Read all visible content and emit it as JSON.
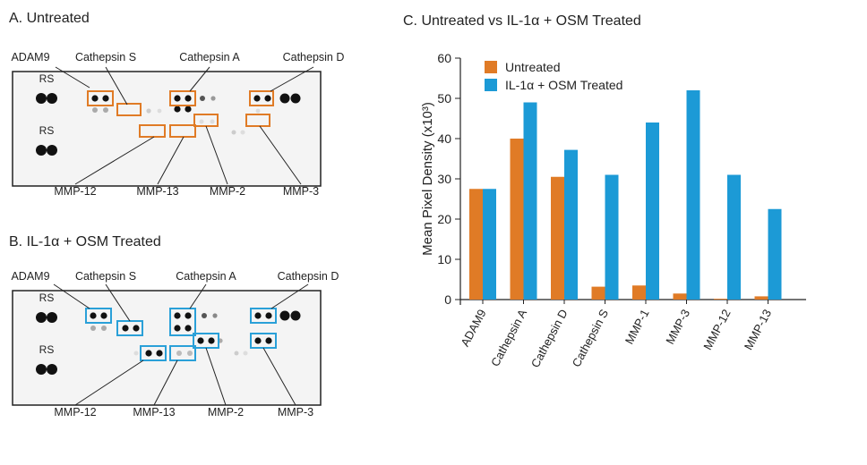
{
  "panel_a": {
    "title": "A. Untreated",
    "label_rs": "RS",
    "top_labels": [
      "ADAM9",
      "Cathepsin S",
      "Cathepsin A",
      "Cathepsin D"
    ],
    "bottom_labels": [
      "MMP-12",
      "MMP-13",
      "MMP-2",
      "MMP-3"
    ],
    "box_color": "#e07b26"
  },
  "panel_b": {
    "title": "B. IL-1α + OSM Treated",
    "label_rs": "RS",
    "top_labels": [
      "ADAM9",
      "Cathepsin S",
      "Cathepsin A",
      "Cathepsin D"
    ],
    "bottom_labels": [
      "MMP-12",
      "MMP-13",
      "MMP-2",
      "MMP-3"
    ],
    "box_color": "#2aa0d8"
  },
  "chart_data": {
    "type": "bar",
    "title": "C. Untreated vs IL-1α + OSM Treated",
    "ylabel": "Mean Pixel Density (x10³)",
    "ylim": [
      0,
      60
    ],
    "yticks": [
      0,
      10,
      20,
      30,
      40,
      50,
      60
    ],
    "categories": [
      "ADAM9",
      "Cathepsin A",
      "Cathepsin D",
      "Cathepsin S",
      "MMP-1",
      "MMP-3",
      "MMP-12",
      "MMP-13"
    ],
    "series": [
      {
        "name": "Untreated",
        "color": "#e07b26",
        "values": [
          27.5,
          40,
          30.5,
          3.2,
          3.5,
          1.5,
          0.2,
          0.8
        ]
      },
      {
        "name": "IL-1α + OSM Treated",
        "color": "#1c9ad6",
        "values": [
          27.5,
          49,
          37.2,
          31,
          44,
          52,
          31,
          22.5
        ]
      }
    ],
    "legend_position": "top-left",
    "grid": false
  }
}
